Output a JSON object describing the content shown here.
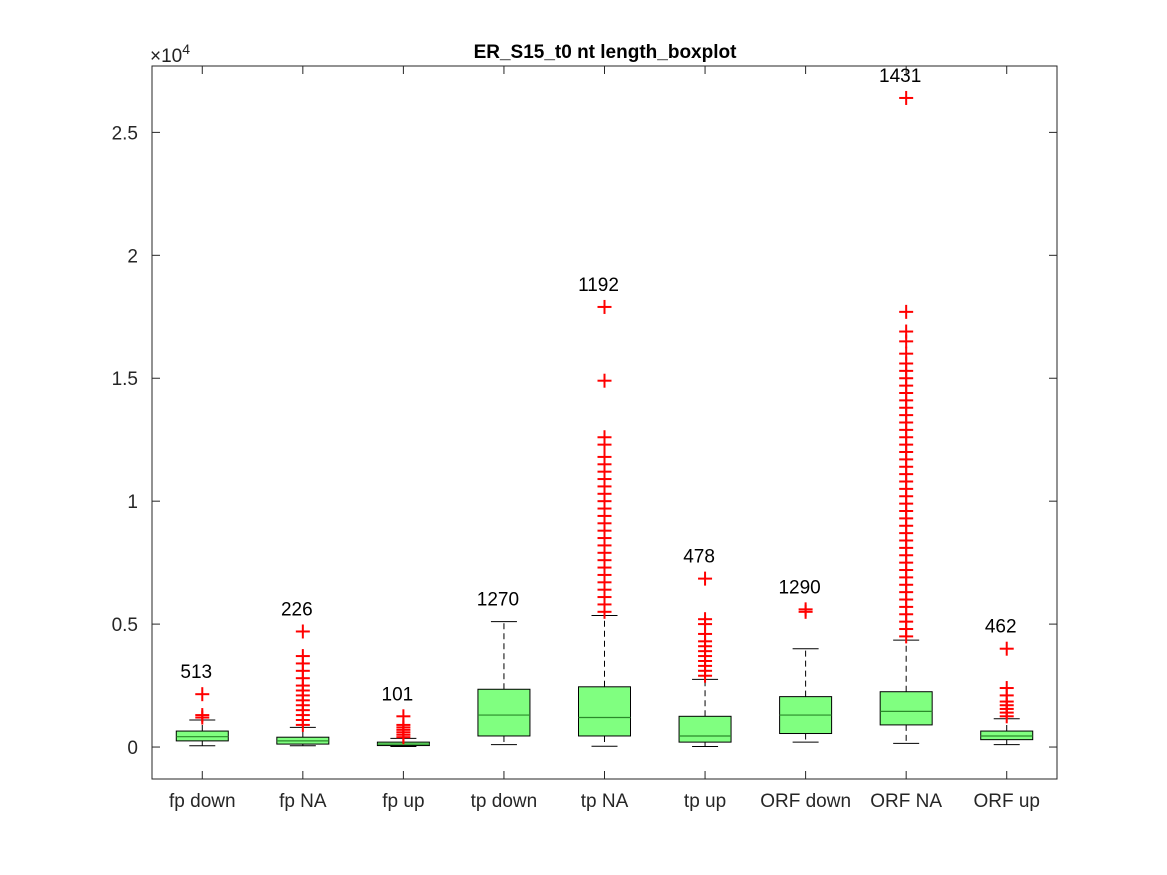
{
  "chart_data": {
    "type": "boxplot",
    "title": "ER_S15_t0 nt length_boxplot",
    "xlabel": "",
    "ylabel": "",
    "y_exponent_label": "×10",
    "y_exponent_power": "4",
    "ylim": [
      -1300,
      27700
    ],
    "y_ticks": [
      0,
      5000,
      10000,
      15000,
      20000,
      25000
    ],
    "y_tick_labels": [
      "0",
      "0.5",
      "1",
      "1.5",
      "2",
      "2.5"
    ],
    "grid": false,
    "colors": {
      "box": "#80ff80",
      "outlier": "#ff0000",
      "median": "#2a8a2a",
      "text": "#000000"
    },
    "categories": [
      "fp down",
      "fp NA",
      "fp up",
      "tp down",
      "tp NA",
      "tp up",
      "ORF down",
      "ORF NA",
      "ORF up"
    ],
    "counts": [
      "513",
      "226",
      "101",
      "1270",
      "1192",
      "478",
      "1290",
      "1431",
      "462"
    ],
    "stats": [
      {
        "whisker_low": 50,
        "q1": 250,
        "median": 420,
        "q3": 650,
        "whisker_high": 1100,
        "outliers": [
          1200,
          1300,
          2150
        ]
      },
      {
        "whisker_low": 50,
        "q1": 120,
        "median": 250,
        "q3": 400,
        "whisker_high": 800,
        "outliers": [
          900,
          1100,
          1300,
          1500,
          1700,
          1900,
          2100,
          2300,
          2500,
          2800,
          3100,
          3400,
          3700,
          4700
        ]
      },
      {
        "whisker_low": 20,
        "q1": 60,
        "median": 120,
        "q3": 200,
        "whisker_high": 350,
        "outliers": [
          400,
          500,
          600,
          700,
          800,
          900,
          1250
        ]
      },
      {
        "whisker_low": 100,
        "q1": 450,
        "median": 1300,
        "q3": 2350,
        "whisker_high": 5100,
        "outliers": []
      },
      {
        "whisker_low": 30,
        "q1": 450,
        "median": 1200,
        "q3": 2450,
        "whisker_high": 5350,
        "outliers": [
          5500,
          5800,
          6100,
          6400,
          6700,
          7000,
          7300,
          7600,
          7900,
          8200,
          8500,
          8800,
          9100,
          9400,
          9700,
          10000,
          10300,
          10600,
          10900,
          11200,
          11500,
          11800,
          12300,
          12600,
          14900,
          17900
        ]
      },
      {
        "whisker_low": 20,
        "q1": 200,
        "median": 450,
        "q3": 1250,
        "whisker_high": 2750,
        "outliers": [
          2900,
          3100,
          3300,
          3500,
          3700,
          3900,
          4100,
          4300,
          4600,
          5000,
          5200,
          6850
        ]
      },
      {
        "whisker_low": 200,
        "q1": 550,
        "median": 1300,
        "q3": 2050,
        "whisker_high": 4000,
        "outliers": [
          5500,
          5600
        ]
      },
      {
        "whisker_low": 150,
        "q1": 900,
        "median": 1450,
        "q3": 2250,
        "whisker_high": 4350,
        "outliers": [
          4500,
          4800,
          5100,
          5400,
          5700,
          6000,
          6300,
          6600,
          6900,
          7200,
          7500,
          7800,
          8100,
          8400,
          8700,
          9000,
          9300,
          9600,
          9900,
          10200,
          10500,
          10800,
          11100,
          11400,
          11700,
          12000,
          12300,
          12600,
          12900,
          13200,
          13500,
          13800,
          14100,
          14400,
          14700,
          15000,
          15300,
          15600,
          16000,
          16500,
          16900,
          17700,
          26400
        ]
      },
      {
        "whisker_low": 100,
        "q1": 300,
        "median": 450,
        "q3": 650,
        "whisker_high": 1150,
        "outliers": [
          1250,
          1400,
          1550,
          1700,
          1850,
          2100,
          2400,
          4000
        ]
      }
    ]
  }
}
